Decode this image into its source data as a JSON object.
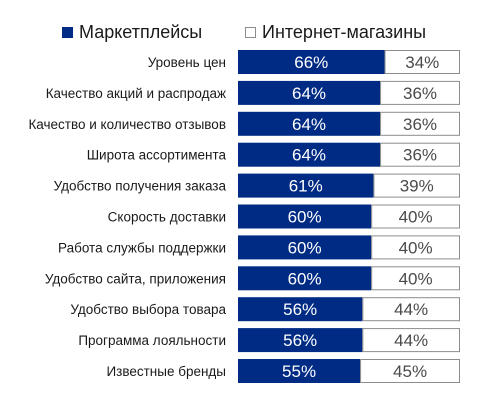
{
  "colors": {
    "marketplaces": "#002b84",
    "online_stores": "#ffffff",
    "outline": "#8c8c8c",
    "text": "#1a1a1a"
  },
  "chart_data": {
    "type": "bar",
    "orientation": "horizontal",
    "stacked": true,
    "legend_position": "top",
    "xlim": [
      0,
      100
    ],
    "unit": "%",
    "categories": [
      "Уровень цен",
      "Качество акций и распродаж",
      "Качество и количество отзывов",
      "Широта ассортимента",
      "Удобство получения заказа",
      "Скорость доставки",
      "Работа службы поддержки",
      "Удобство сайта, приложения",
      "Удобство выбора товара",
      "Программа лояльности",
      "Известные бренды"
    ],
    "series": [
      {
        "name": "Маркетплейсы",
        "values": [
          66,
          64,
          64,
          64,
          61,
          60,
          60,
          60,
          56,
          56,
          55
        ]
      },
      {
        "name": "Интернет-магазины",
        "values": [
          34,
          36,
          36,
          36,
          39,
          40,
          40,
          40,
          44,
          44,
          45
        ]
      }
    ]
  }
}
